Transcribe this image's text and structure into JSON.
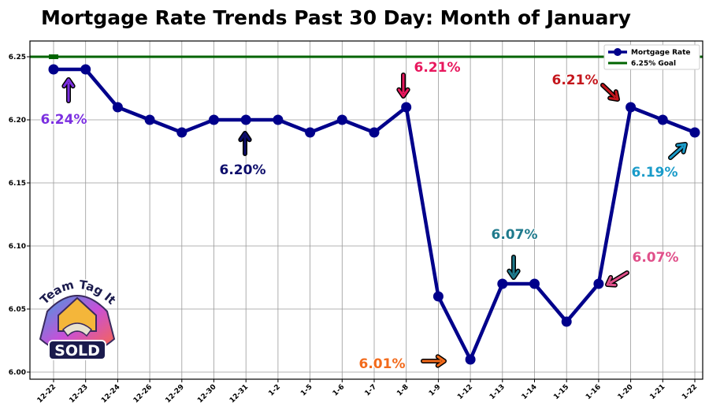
{
  "chart_data": {
    "type": "line",
    "title": "Mortgage Rate Trends Past 30 Day: Month of January",
    "categories": [
      "12-22",
      "12-23",
      "12-24",
      "12-26",
      "12-29",
      "12-30",
      "12-31",
      "1-2",
      "1-5",
      "1-6",
      "1-7",
      "1-8",
      "1-9",
      "1-12",
      "1-13",
      "1-14",
      "1-15",
      "1-16",
      "1-20",
      "1-21",
      "1-22"
    ],
    "series": [
      {
        "name": "Mortgage Rate",
        "color": "#00008b",
        "values": [
          6.24,
          6.24,
          6.21,
          6.2,
          6.19,
          6.2,
          6.2,
          6.2,
          6.19,
          6.2,
          6.19,
          6.21,
          6.06,
          6.01,
          6.07,
          6.07,
          6.04,
          6.07,
          6.21,
          6.2,
          6.19
        ]
      }
    ],
    "reference_line": {
      "name": "6.25% Goal",
      "value": 6.25,
      "color": "#006400"
    },
    "ylim": [
      6.0,
      6.25
    ],
    "yticks": [
      6.0,
      6.05,
      6.1,
      6.15,
      6.2,
      6.25
    ],
    "ytick_labels": [
      "6.00",
      "6.05",
      "6.10",
      "6.15",
      "6.20",
      "6.25"
    ],
    "grid": true,
    "legend_position": "top-right",
    "annotations": [
      {
        "text": "6.24%",
        "color": "#7b2fe0"
      },
      {
        "text": "6.20%",
        "color": "#0d0d6b"
      },
      {
        "text": "6.21%",
        "color": "#e8175d"
      },
      {
        "text": "6.21%",
        "color": "#c4161c"
      },
      {
        "text": "6.19%",
        "color": "#1a9bc9"
      },
      {
        "text": "6.07%",
        "color": "#1f7a8c"
      },
      {
        "text": "6.07%",
        "color": "#e0508a"
      },
      {
        "text": "6.01%",
        "color": "#f26a1b"
      }
    ]
  },
  "logo": {
    "line1": "Team Tag It",
    "line2": "SOLD"
  }
}
